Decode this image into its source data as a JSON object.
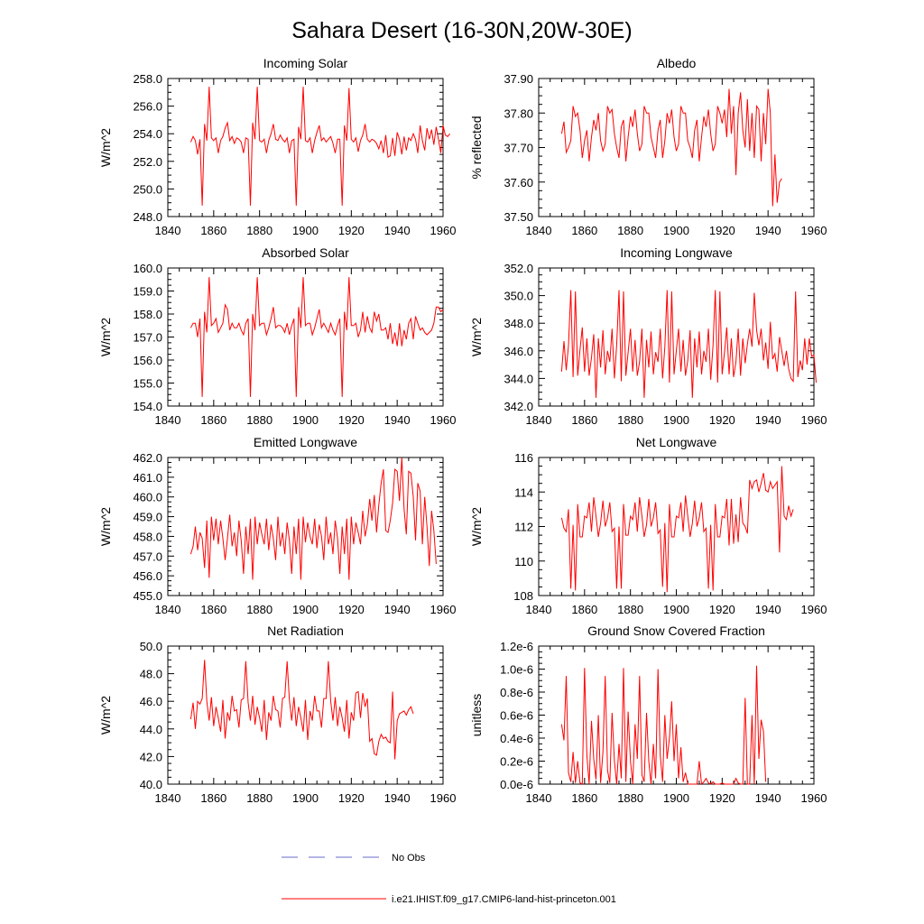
{
  "page_title": "Sahara Desert (16-30N,20W-30E)",
  "legend": [
    {
      "label": "No Obs",
      "color": "#6a6ac8",
      "dash": true
    },
    {
      "label": "i.e21.IHIST.f09_g17.CMIP6-land-hist-princeton.001",
      "color": "#ff0000",
      "dash": false
    }
  ],
  "colors": {
    "model": "#ff0000",
    "obs": "#6a6ac8"
  },
  "chart_data": [
    {
      "type": "line",
      "title": "Incoming Solar",
      "ylabel": "W/m^2",
      "xlim": [
        1840,
        1960
      ],
      "ylim": [
        248,
        258
      ],
      "xticks": [
        1840,
        1860,
        1880,
        1900,
        1920,
        1940,
        1960
      ],
      "xtick_labels": [
        "1840",
        "1860",
        "1880",
        "1900",
        "1920",
        "1940",
        "1960"
      ],
      "yticks": [
        248,
        250,
        252,
        254,
        256,
        258
      ],
      "ytick_labels": [
        "248.0",
        "250.0",
        "252.0",
        "254.0",
        "256.0",
        "258.0"
      ],
      "x_start": 1850,
      "values": [
        253.4,
        253.8,
        253.5,
        252.5,
        253.6,
        248.8,
        254.7,
        253.5,
        257.4,
        253.7,
        253.5,
        253.7,
        252.6,
        253.5,
        253.8,
        254.4,
        254.8,
        253.5,
        253.8,
        253.3,
        253.7,
        253.6,
        253.4,
        252.6,
        253.7,
        253.6,
        248.8,
        254.8,
        253.6,
        257.4,
        253.5,
        253.4,
        253.6,
        252.6,
        253.5,
        254.0,
        254.7,
        253.6,
        253.5,
        253.9,
        253.6,
        253.4,
        253.7,
        252.6,
        253.5,
        253.6,
        248.8,
        254.5,
        253.6,
        257.4,
        253.5,
        253.4,
        253.7,
        252.6,
        253.5,
        254.1,
        254.6,
        253.5,
        253.7,
        253.4,
        253.6,
        253.8,
        253.3,
        252.6,
        253.6,
        253.6,
        248.8,
        254.6,
        253.5,
        257.3,
        253.6,
        253.4,
        253.7,
        252.7,
        253.5,
        253.9,
        254.7,
        253.6,
        253.4,
        253.6,
        253.5,
        253.3,
        252.9,
        253.5,
        252.6,
        253.9,
        252.3,
        252.4,
        253.7,
        252.4,
        254.1,
        253.6,
        252.5,
        253.8,
        252.8,
        253.7,
        253.5,
        254.0,
        253.6,
        252.6,
        254.6,
        253.5,
        252.8,
        254.4,
        253.6,
        254.3,
        253.2,
        254.5,
        253.6,
        252.6,
        254.6,
        253.9,
        253.8,
        254.0
      ]
    },
    {
      "type": "line",
      "title": "Albedo",
      "ylabel": "% reflected",
      "xlim": [
        1840,
        1960
      ],
      "ylim": [
        37.5,
        37.9
      ],
      "xticks": [
        1840,
        1860,
        1880,
        1900,
        1920,
        1940,
        1960
      ],
      "xtick_labels": [
        "1840",
        "1860",
        "1880",
        "1900",
        "1920",
        "1940",
        "1960"
      ],
      "yticks": [
        37.5,
        37.6,
        37.7,
        37.8,
        37.9
      ],
      "ytick_labels": [
        "37.50",
        "37.60",
        "37.70",
        "37.80",
        "37.90"
      ],
      "x_start": 1850,
      "values": [
        37.74,
        37.775,
        37.686,
        37.7,
        37.72,
        37.82,
        37.79,
        37.8,
        37.75,
        37.67,
        37.72,
        37.75,
        37.66,
        37.73,
        37.78,
        37.75,
        37.8,
        37.72,
        37.69,
        37.71,
        37.82,
        37.8,
        37.81,
        37.74,
        37.7,
        37.67,
        37.76,
        37.78,
        37.66,
        37.73,
        37.79,
        37.76,
        37.81,
        37.74,
        37.69,
        37.71,
        37.82,
        37.8,
        37.8,
        37.73,
        37.7,
        37.67,
        37.75,
        37.78,
        37.67,
        37.72,
        37.8,
        37.77,
        37.81,
        37.73,
        37.69,
        37.71,
        37.82,
        37.8,
        37.8,
        37.72,
        37.7,
        37.67,
        37.75,
        37.78,
        37.66,
        37.73,
        37.79,
        37.76,
        37.81,
        37.74,
        37.69,
        37.71,
        37.82,
        37.8,
        37.77,
        37.81,
        37.73,
        37.87,
        37.74,
        37.82,
        37.62,
        37.8,
        37.86,
        37.75,
        37.7,
        37.84,
        37.69,
        37.8,
        37.67,
        37.82,
        37.81,
        37.66,
        37.8,
        37.71,
        37.87,
        37.8,
        37.53,
        37.68,
        37.54,
        37.6,
        37.61
      ]
    },
    {
      "type": "line",
      "title": "Absorbed Solar",
      "ylabel": "W/m^2",
      "xlim": [
        1840,
        1960
      ],
      "ylim": [
        154,
        160
      ],
      "xticks": [
        1840,
        1860,
        1880,
        1900,
        1920,
        1940,
        1960
      ],
      "xtick_labels": [
        "1840",
        "1860",
        "1880",
        "1900",
        "1920",
        "1940",
        "1960"
      ],
      "yticks": [
        154,
        155,
        156,
        157,
        158,
        159,
        160
      ],
      "ytick_labels": [
        "154.0",
        "155.0",
        "156.0",
        "157.0",
        "158.0",
        "159.0",
        "160.0"
      ],
      "x_start": 1850,
      "values": [
        157.4,
        157.6,
        157.6,
        157.0,
        157.8,
        154.4,
        158.1,
        157.2,
        159.6,
        157.5,
        157.6,
        157.8,
        157.2,
        157.4,
        157.6,
        158.4,
        158.2,
        157.3,
        157.6,
        157.4,
        157.4,
        157.6,
        157.3,
        157.1,
        157.6,
        157.8,
        154.4,
        158.0,
        157.3,
        159.6,
        157.5,
        157.6,
        157.6,
        157.1,
        157.4,
        157.8,
        158.3,
        157.4,
        157.5,
        157.5,
        157.4,
        157.2,
        157.6,
        157.1,
        157.5,
        157.8,
        154.4,
        158.3,
        157.4,
        159.6,
        157.5,
        157.6,
        157.6,
        157.1,
        157.4,
        157.8,
        158.2,
        157.4,
        157.6,
        157.4,
        157.2,
        157.6,
        157.3,
        157.1,
        157.5,
        157.8,
        154.4,
        158.1,
        157.3,
        159.6,
        157.5,
        157.5,
        157.6,
        157.0,
        157.3,
        158.1,
        157.2,
        157.9,
        157.4,
        157.2,
        158.1,
        157.7,
        158.0,
        157.3,
        157.3,
        157.4,
        156.9,
        157.6,
        156.7,
        157.2,
        156.6,
        157.6,
        156.6,
        157.3,
        156.9,
        157.6,
        157.8,
        156.9,
        157.9,
        157.6,
        157.3,
        157.4,
        157.2,
        157.1,
        157.2,
        157.3,
        157.6,
        158.3,
        158.3,
        158.1,
        158.2
      ]
    },
    {
      "type": "line",
      "title": "Incoming Longwave",
      "ylabel": "W/m^2",
      "xlim": [
        1840,
        1960
      ],
      "ylim": [
        342,
        352
      ],
      "xticks": [
        1840,
        1860,
        1880,
        1900,
        1920,
        1940,
        1960
      ],
      "xtick_labels": [
        "1840",
        "1860",
        "1880",
        "1900",
        "1920",
        "1940",
        "1960"
      ],
      "yticks": [
        342,
        344,
        346,
        348,
        350,
        352
      ],
      "ytick_labels": [
        "342.0",
        "344.0",
        "346.0",
        "348.0",
        "350.0",
        "352.0"
      ],
      "x_start": 1850,
      "values": [
        344.5,
        346.7,
        344.6,
        346.4,
        350.4,
        344.1,
        350.3,
        344.2,
        346.1,
        347.7,
        344.5,
        346.9,
        344.2,
        345.5,
        347.2,
        342.6,
        346.9,
        344.8,
        347.5,
        344.3,
        346.0,
        345.2,
        347.6,
        344.0,
        346.4,
        350.4,
        343.8,
        350.3,
        344.2,
        345.9,
        347.6,
        344.5,
        346.8,
        344.2,
        345.2,
        347.6,
        342.6,
        346.8,
        344.8,
        347.4,
        344.3,
        345.9,
        345.2,
        347.6,
        344.0,
        346.3,
        350.4,
        343.7,
        350.3,
        344.3,
        346.0,
        347.6,
        344.5,
        346.8,
        344.2,
        345.3,
        347.5,
        342.6,
        346.9,
        344.8,
        347.4,
        344.3,
        346.0,
        345.2,
        347.6,
        343.9,
        346.4,
        350.4,
        343.7,
        350.3,
        344.3,
        345.9,
        347.7,
        344.3,
        346.9,
        344.1,
        345.2,
        347.6,
        344.2,
        346.9,
        345.1,
        346.5,
        347.6,
        346.3,
        350.2,
        347.5,
        346.4,
        347.6,
        345.3,
        346.6,
        344.7,
        348.1,
        345.4,
        345.8,
        344.5,
        347.0,
        346.0,
        344.9,
        346.0,
        344.7,
        344.0,
        343.8,
        350.3,
        344.1,
        345.3,
        344.6,
        346.9,
        345.0,
        346.9,
        345.6,
        345.7,
        343.7
      ]
    },
    {
      "type": "line",
      "title": "Emitted Longwave",
      "ylabel": "W/m^2",
      "xlim": [
        1840,
        1960
      ],
      "ylim": [
        455,
        462
      ],
      "xticks": [
        1840,
        1860,
        1880,
        1900,
        1920,
        1940,
        1960
      ],
      "xtick_labels": [
        "1840",
        "1860",
        "1880",
        "1900",
        "1920",
        "1940",
        "1960"
      ],
      "yticks": [
        455,
        456,
        457,
        458,
        459,
        460,
        461,
        462
      ],
      "ytick_labels": [
        "455.0",
        "456.0",
        "457.0",
        "458.0",
        "459.0",
        "460.0",
        "461.0",
        "462.0"
      ],
      "x_start": 1850,
      "values": [
        457.1,
        457.5,
        458.5,
        457.3,
        458.2,
        457.9,
        456.4,
        458.8,
        455.9,
        459.0,
        457.8,
        458.9,
        457.6,
        458.8,
        457.9,
        456.8,
        457.9,
        459.1,
        457.5,
        458.2,
        457.0,
        458.8,
        457.8,
        456.1,
        458.5,
        457.1,
        458.9,
        455.8,
        459.0,
        457.6,
        458.7,
        458.1,
        457.6,
        458.9,
        457.3,
        458.6,
        457.9,
        456.8,
        459.0,
        457.5,
        458.2,
        457.1,
        458.7,
        457.8,
        456.1,
        458.5,
        457.1,
        458.9,
        455.8,
        459.0,
        457.7,
        458.7,
        458.0,
        457.6,
        458.9,
        457.4,
        458.6,
        458.0,
        456.8,
        459.0,
        457.6,
        458.2,
        457.1,
        458.8,
        457.9,
        456.1,
        458.5,
        457.1,
        458.9,
        455.8,
        459.0,
        457.6,
        458.7,
        458.2,
        457.6,
        459.3,
        458.0,
        458.6,
        459.9,
        458.8,
        460.1,
        458.2,
        459.6,
        460.7,
        461.4,
        458.3,
        458.2,
        458.8,
        459.7,
        461.4,
        461.3,
        459.8,
        462.0,
        459.4,
        458.1,
        461.3,
        461.2,
        460.0,
        457.8,
        460.7,
        460.3,
        457.6,
        460.0,
        458.5,
        456.5,
        459.3,
        458.3,
        456.6
      ]
    },
    {
      "type": "line",
      "title": "Net Longwave",
      "ylabel": "W/m^2",
      "xlim": [
        1840,
        1960
      ],
      "ylim": [
        108,
        116
      ],
      "xticks": [
        1840,
        1860,
        1880,
        1900,
        1920,
        1940,
        1960
      ],
      "xtick_labels": [
        "1840",
        "1860",
        "1880",
        "1900",
        "1920",
        "1940",
        "1960"
      ],
      "yticks": [
        108,
        110,
        112,
        114,
        116
      ],
      "ytick_labels": [
        "108",
        "110",
        "112",
        "114",
        "116"
      ],
      "x_start": 1850,
      "values": [
        112.5,
        111.9,
        111.7,
        113.0,
        108.4,
        112.1,
        108.3,
        113.3,
        111.4,
        111.4,
        112.6,
        112.5,
        113.4,
        111.7,
        113.7,
        112.6,
        111.4,
        112.2,
        113.5,
        112.0,
        112.5,
        113.4,
        111.7,
        111.9,
        108.4,
        112.0,
        108.4,
        113.3,
        111.5,
        111.5,
        112.6,
        112.4,
        113.4,
        111.7,
        113.7,
        112.6,
        111.4,
        112.1,
        113.6,
        112.0,
        112.5,
        113.4,
        111.6,
        111.8,
        108.5,
        112.2,
        108.2,
        113.3,
        111.4,
        111.4,
        112.6,
        112.5,
        113.4,
        111.7,
        113.8,
        112.6,
        111.4,
        112.2,
        113.5,
        112.0,
        112.5,
        113.4,
        111.7,
        111.9,
        108.4,
        112.1,
        108.3,
        113.3,
        111.4,
        111.4,
        112.6,
        112.5,
        113.6,
        110.9,
        113.6,
        111.0,
        112.7,
        111.1,
        113.7,
        112.2,
        112.0,
        111.6,
        114.7,
        114.2,
        114.6,
        114.7,
        114.0,
        114.5,
        115.1,
        114.1,
        114.0,
        114.6,
        114.2,
        114.4,
        114.6,
        110.5,
        115.5,
        112.6,
        112.4,
        113.2,
        112.6,
        113.0
      ]
    },
    {
      "type": "line",
      "title": "Net Radiation",
      "ylabel": "W/m^2",
      "xlim": [
        1840,
        1960
      ],
      "ylim": [
        40,
        50
      ],
      "xticks": [
        1840,
        1860,
        1880,
        1900,
        1920,
        1940,
        1960
      ],
      "xtick_labels": [
        "1840",
        "1860",
        "1880",
        "1900",
        "1920",
        "1940",
        "1960"
      ],
      "yticks": [
        40,
        42,
        44,
        46,
        48,
        50
      ],
      "ytick_labels": [
        "40.0",
        "42.0",
        "44.0",
        "46.0",
        "48.0",
        "50.0"
      ],
      "x_start": 1850,
      "values": [
        44.7,
        45.9,
        44.0,
        46.0,
        45.8,
        46.2,
        49.0,
        46.0,
        44.6,
        46.3,
        44.2,
        45.6,
        44.8,
        43.8,
        46.1,
        43.3,
        45.2,
        44.6,
        46.4,
        45.3,
        45.4,
        44.1,
        46.1,
        46.2,
        48.9,
        45.9,
        44.6,
        46.4,
        44.3,
        45.6,
        44.8,
        43.8,
        46.1,
        43.2,
        45.2,
        44.6,
        46.4,
        45.4,
        45.3,
        44.1,
        46.2,
        46.3,
        48.9,
        46.1,
        44.6,
        46.3,
        44.2,
        45.6,
        44.8,
        43.8,
        46.1,
        43.2,
        45.3,
        44.6,
        46.4,
        45.3,
        45.3,
        44.1,
        46.2,
        46.2,
        48.9,
        46.0,
        44.6,
        46.3,
        44.2,
        45.6,
        44.8,
        43.8,
        46.1,
        43.3,
        45.2,
        44.6,
        46.6,
        46.7,
        44.8,
        46.6,
        45.6,
        46.2,
        43.1,
        43.3,
        42.2,
        42.1,
        43.1,
        43.6,
        43.3,
        43.4,
        43.1,
        43.0,
        46.7,
        41.8,
        44.6,
        45.1,
        45.2,
        45.3,
        45.0,
        45.4,
        45.6,
        45.1
      ]
    },
    {
      "type": "line",
      "title": "Ground Snow Covered Fraction",
      "ylabel": "unitless",
      "xlim": [
        1840,
        1960
      ],
      "ylim": [
        0,
        1.2
      ],
      "xticks": [
        1840,
        1860,
        1880,
        1900,
        1920,
        1940,
        1960
      ],
      "xtick_labels": [
        "1840",
        "1860",
        "1880",
        "1900",
        "1920",
        "1940",
        "1960"
      ],
      "yticks": [
        0,
        0.2,
        0.4,
        0.6,
        0.8,
        1.0,
        1.2
      ],
      "ytick_labels": [
        "0.0e-6",
        "0.2e-6",
        "0.4e-6",
        "0.6e-6",
        "0.8e-6",
        "1.0e-6",
        "1.2e-6"
      ],
      "x_start": 1850,
      "values": [
        0.52,
        0.38,
        0.94,
        0.1,
        0.02,
        0.28,
        0.01,
        0.2,
        0.01,
        0.0,
        1.01,
        0.25,
        0.0,
        0.55,
        0.22,
        0.04,
        0.6,
        0.01,
        0.28,
        0.94,
        0.12,
        0.01,
        0.62,
        0.2,
        0.0,
        0.35,
        0.05,
        1.01,
        0.02,
        0.63,
        0.2,
        0.0,
        0.52,
        0.22,
        0.94,
        0.08,
        0.02,
        0.62,
        0.2,
        0.0,
        0.35,
        0.05,
        1.0,
        0.25,
        0.02,
        0.6,
        0.22,
        0.4,
        0.72,
        0.2,
        0.52,
        0.05,
        0.32,
        0.02,
        0.1,
        0.0,
        0.0,
        0.0,
        0.0,
        0.0,
        0.2,
        0.0,
        0.02,
        0.05,
        0.01,
        0.0,
        0.02,
        0.0,
        0.0,
        0.0,
        0.01,
        0.0,
        0.0,
        0.0,
        0.0,
        0.0,
        0.05,
        0.01,
        0.0,
        0.0,
        0.75,
        0.0,
        0.0,
        0.6,
        0.0,
        1.03,
        0.22,
        0.56,
        0.46,
        0.02
      ]
    }
  ]
}
